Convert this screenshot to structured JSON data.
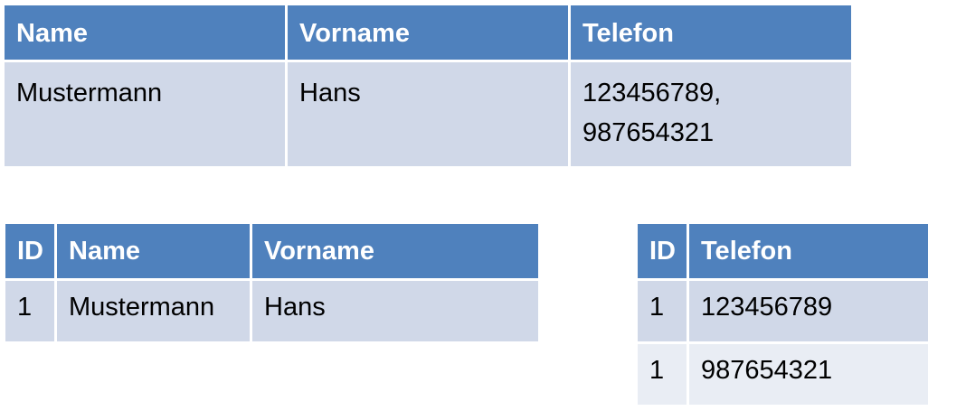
{
  "table1": {
    "headers": [
      "Name",
      "Vorname",
      "Telefon"
    ],
    "row": {
      "name": "Mustermann",
      "vorname": "Hans",
      "telefon_line1": "123456789,",
      "telefon_line2": "987654321"
    }
  },
  "table2": {
    "headers": [
      "ID",
      "Name",
      "Vorname"
    ],
    "rows": [
      [
        "1",
        "Mustermann",
        "Hans"
      ]
    ]
  },
  "table3": {
    "headers": [
      "ID",
      "Telefon"
    ],
    "rows": [
      [
        "1",
        "123456789"
      ],
      [
        "1",
        "987654321"
      ]
    ]
  },
  "colors": {
    "header": "#4f81bd",
    "band": "#d0d8e8",
    "band_alt": "#e9edf4"
  }
}
